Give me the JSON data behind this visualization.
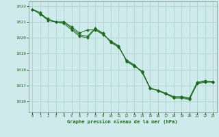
{
  "xlabel": "Graphe pression niveau de la mer (hPa)",
  "bg_color": "#ceeaea",
  "grid_color": "#aed0d0",
  "line_color": "#1a6b1a",
  "marker_color": "#1a6b1a",
  "xlim": [
    -0.5,
    23.5
  ],
  "ylim": [
    1015.3,
    1022.3
  ],
  "yticks": [
    1016,
    1017,
    1018,
    1019,
    1020,
    1021,
    1022
  ],
  "xticks": [
    0,
    1,
    2,
    3,
    4,
    5,
    6,
    7,
    8,
    9,
    10,
    11,
    12,
    13,
    14,
    15,
    16,
    17,
    18,
    19,
    20,
    21,
    22,
    23
  ],
  "series": [
    [
      1021.8,
      1021.6,
      1021.1,
      1021.0,
      1021.0,
      1020.7,
      1020.3,
      1020.5,
      1020.5,
      1020.2,
      1019.8,
      1019.5,
      1018.5,
      1018.2,
      1017.9,
      1016.8,
      1016.7,
      1016.5,
      1016.2,
      1016.2,
      1016.1,
      1017.1,
      1017.2,
      1017.2
    ],
    [
      1021.8,
      1021.5,
      1021.2,
      1021.0,
      1021.0,
      1020.6,
      1020.2,
      1020.1,
      1020.6,
      1020.3,
      1019.7,
      1019.4,
      1018.6,
      1018.3,
      1017.8,
      1016.8,
      1016.7,
      1016.5,
      1016.3,
      1016.3,
      1016.2,
      1017.2,
      1017.3,
      1017.2
    ],
    [
      1021.8,
      1021.5,
      1021.1,
      1021.0,
      1020.9,
      1020.5,
      1020.1,
      1020.0,
      1020.55,
      1020.25,
      1019.75,
      1019.45,
      1018.55,
      1018.25,
      1017.85,
      1016.85,
      1016.65,
      1016.45,
      1016.25,
      1016.25,
      1016.15,
      1017.15,
      1017.25,
      1017.25
    ]
  ]
}
